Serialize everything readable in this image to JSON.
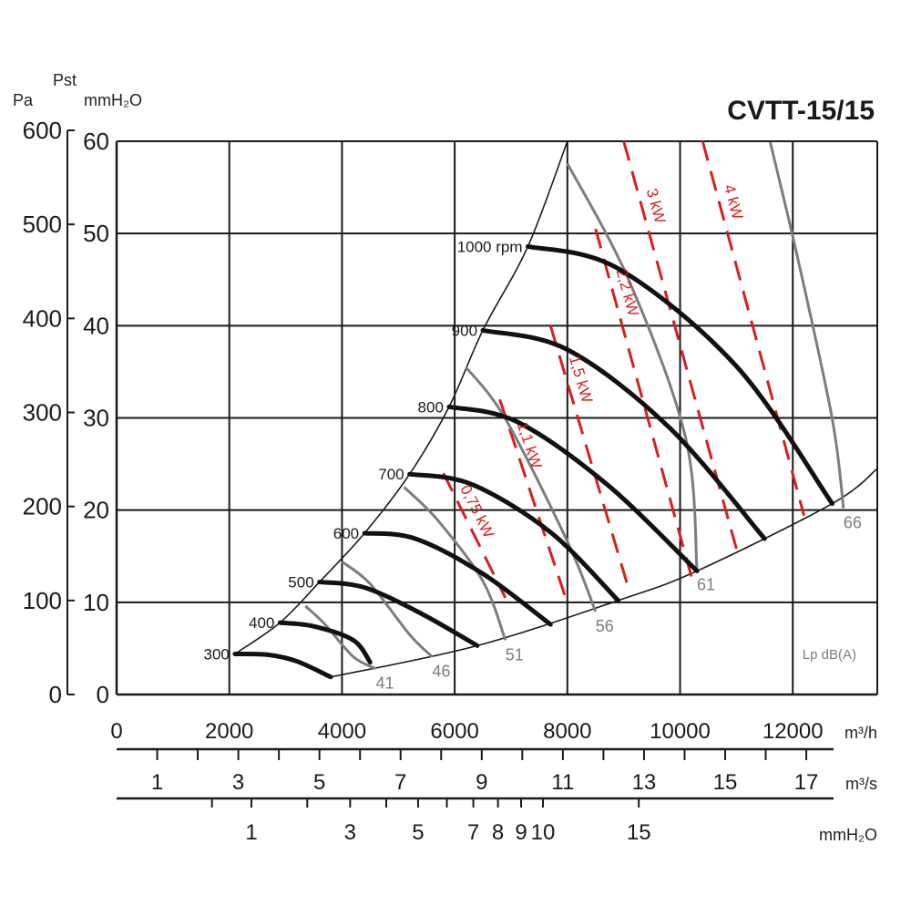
{
  "chart_data": {
    "type": "line",
    "title": "CVTT-15/15",
    "axes": {
      "x": {
        "unit": "m³/h",
        "range": [
          0,
          13500
        ],
        "ticks": [
          0,
          2000,
          4000,
          6000,
          8000,
          10000,
          12000
        ]
      },
      "y_mmH2O": {
        "name": "Pst",
        "unit": "mmH₂O",
        "range": [
          0,
          60
        ],
        "ticks": [
          0,
          10,
          20,
          30,
          40,
          50,
          60
        ]
      },
      "y_pa": {
        "unit": "Pa",
        "range": [
          0,
          600
        ],
        "ticks": [
          0,
          100,
          200,
          300,
          400,
          500,
          600
        ]
      },
      "m3s": {
        "unit": "m³/s",
        "ticks": [
          1,
          3,
          5,
          7,
          9,
          11,
          13,
          15,
          17
        ]
      },
      "velocity": {
        "unit": "mmH₂O",
        "labels": [
          "1",
          "3",
          "5",
          "7",
          "8",
          "9",
          "10",
          "15"
        ]
      }
    },
    "grid": true,
    "rpm_curves": [
      {
        "label": "300",
        "points": [
          [
            2100,
            4.4
          ],
          [
            2700,
            4.3
          ],
          [
            3200,
            3.6
          ],
          [
            3800,
            1.9
          ]
        ]
      },
      {
        "label": "400",
        "points": [
          [
            2900,
            7.8
          ],
          [
            3500,
            7.4
          ],
          [
            4200,
            5.9
          ],
          [
            4500,
            3.5
          ]
        ]
      },
      {
        "label": "500",
        "points": [
          [
            3600,
            12.2
          ],
          [
            4400,
            11.6
          ],
          [
            5400,
            8.8
          ],
          [
            6400,
            5.3
          ]
        ]
      },
      {
        "label": "600",
        "points": [
          [
            4400,
            17.5
          ],
          [
            5300,
            16.9
          ],
          [
            6500,
            13.1
          ],
          [
            7700,
            7.6
          ]
        ]
      },
      {
        "label": "700",
        "points": [
          [
            5200,
            23.9
          ],
          [
            6300,
            22.8
          ],
          [
            7700,
            17.6
          ],
          [
            8900,
            10.2
          ]
        ]
      },
      {
        "label": "800",
        "points": [
          [
            5900,
            31.2
          ],
          [
            7100,
            29.6
          ],
          [
            8700,
            22.8
          ],
          [
            10300,
            13.4
          ]
        ]
      },
      {
        "label": "900",
        "points": [
          [
            6500,
            39.5
          ],
          [
            8000,
            37.4
          ],
          [
            9800,
            29.0
          ],
          [
            11500,
            16.9
          ]
        ]
      },
      {
        "label": "1000 rpm",
        "points": [
          [
            7300,
            48.6
          ],
          [
            8900,
            46.2
          ],
          [
            11000,
            35.6
          ],
          [
            12700,
            20.7
          ]
        ]
      }
    ],
    "noise_curves": [
      {
        "label": "41",
        "points": [
          [
            3350,
            9.6
          ],
          [
            3700,
            7.6
          ],
          [
            4200,
            4.1
          ],
          [
            4600,
            2.8
          ]
        ]
      },
      {
        "label": "46",
        "points": [
          [
            4000,
            14.4
          ],
          [
            4500,
            12.0
          ],
          [
            5200,
            6.5
          ],
          [
            5600,
            4.1
          ]
        ]
      },
      {
        "label": "51",
        "points": [
          [
            5100,
            22.5
          ],
          [
            5700,
            18.9
          ],
          [
            6500,
            12.3
          ],
          [
            6900,
            5.9
          ]
        ]
      },
      {
        "label": "56",
        "points": [
          [
            6200,
            35.5
          ],
          [
            6900,
            29.9
          ],
          [
            8000,
            16.6
          ],
          [
            8500,
            9.0
          ]
        ]
      },
      {
        "label": "61",
        "points": [
          [
            8000,
            57.6
          ],
          [
            9100,
            44.8
          ],
          [
            10100,
            27.8
          ],
          [
            10300,
            13.5
          ]
        ]
      },
      {
        "label": "66",
        "points": [
          [
            11600,
            59.9
          ],
          [
            12100,
            47.0
          ],
          [
            12700,
            29.9
          ],
          [
            12900,
            20.2
          ]
        ]
      }
    ],
    "power_curves": [
      {
        "label": "0,75 kW",
        "points": [
          [
            5800,
            24.0
          ],
          [
            6900,
            10.5
          ]
        ]
      },
      {
        "label": "1,1 kW",
        "points": [
          [
            6800,
            32.0
          ],
          [
            8000,
            9.9
          ]
        ]
      },
      {
        "label": "1,5 kW",
        "points": [
          [
            7700,
            40.0
          ],
          [
            9100,
            11.2
          ]
        ]
      },
      {
        "label": "2,2 kW",
        "points": [
          [
            8500,
            50.5
          ],
          [
            10200,
            12.8
          ]
        ]
      },
      {
        "label": "3 kW",
        "points": [
          [
            9000,
            60.0
          ],
          [
            11000,
            15.8
          ]
        ]
      },
      {
        "label": "4 kW",
        "points": [
          [
            10400,
            60.0
          ],
          [
            12200,
            19.4
          ]
        ]
      }
    ],
    "annotations": {
      "noise_axis_label": "Lp dB(A)"
    },
    "colors": {
      "rpm": "#111111",
      "noise": "#7d7d7d",
      "power": "#d81e1e"
    }
  }
}
